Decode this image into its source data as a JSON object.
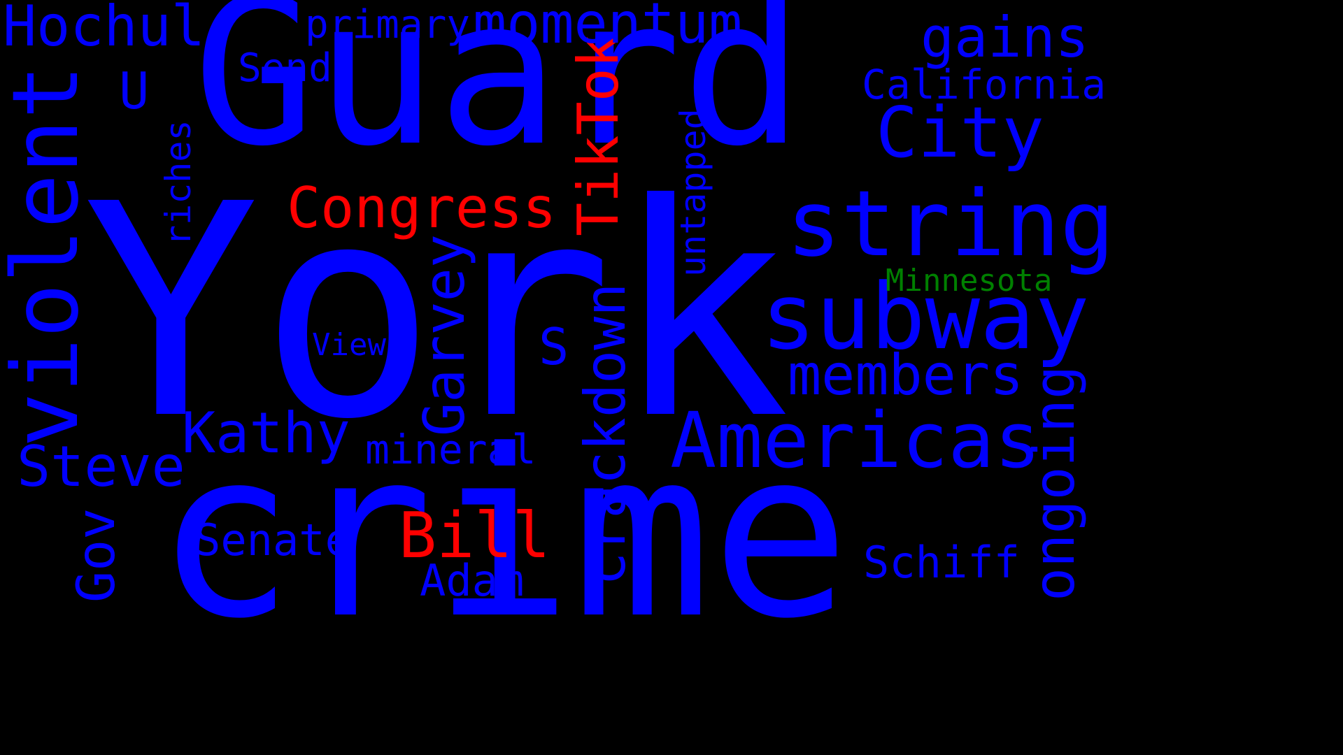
{
  "word_cloud": {
    "colors": {
      "background": "#000000",
      "blue": "#0000ff",
      "red": "#ff0000",
      "green": "#008000"
    },
    "words": [
      {
        "text": "York",
        "color": "blue"
      },
      {
        "text": "crime",
        "color": "blue"
      },
      {
        "text": "Guard",
        "color": "blue"
      },
      {
        "text": "violent",
        "color": "blue"
      },
      {
        "text": "subway",
        "color": "blue"
      },
      {
        "text": "string",
        "color": "blue"
      },
      {
        "text": "Americas",
        "color": "blue"
      },
      {
        "text": "City",
        "color": "blue"
      },
      {
        "text": "crackdown",
        "color": "blue"
      },
      {
        "text": "members",
        "color": "blue"
      },
      {
        "text": "Congress",
        "color": "red"
      },
      {
        "text": "TikTok",
        "color": "red"
      },
      {
        "text": "Bill",
        "color": "red"
      },
      {
        "text": "Garvey",
        "color": "blue"
      },
      {
        "text": "ongoing",
        "color": "blue"
      },
      {
        "text": "momentum",
        "color": "blue"
      },
      {
        "text": "gains",
        "color": "blue"
      },
      {
        "text": "Hochul",
        "color": "blue"
      },
      {
        "text": "Kathy",
        "color": "blue"
      },
      {
        "text": "Steve",
        "color": "blue"
      },
      {
        "text": "Gov",
        "color": "blue"
      },
      {
        "text": "California",
        "color": "blue"
      },
      {
        "text": "Senate",
        "color": "blue"
      },
      {
        "text": "Schiff",
        "color": "blue"
      },
      {
        "text": "Adam",
        "color": "blue"
      },
      {
        "text": "mineral",
        "color": "blue"
      },
      {
        "text": "untapped",
        "color": "blue"
      },
      {
        "text": "riches",
        "color": "blue"
      },
      {
        "text": "primary",
        "color": "blue"
      },
      {
        "text": "Send",
        "color": "blue"
      },
      {
        "text": "U",
        "color": "blue"
      },
      {
        "text": "S",
        "color": "blue"
      },
      {
        "text": "View",
        "color": "blue"
      },
      {
        "text": "Minnesota",
        "color": "green"
      }
    ]
  }
}
